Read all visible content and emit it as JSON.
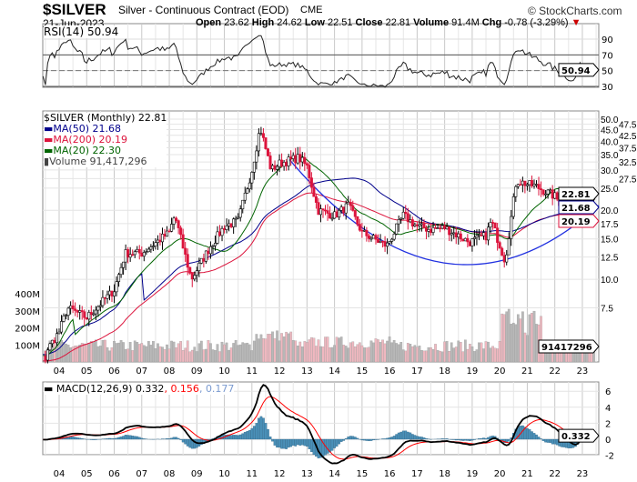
{
  "header": {
    "symbol": "$SILVER",
    "name": "Silver - Continuous Contract (EOD)",
    "exchange": "CME",
    "date": "21-Jun-2023",
    "brand": "© StockCharts.com",
    "open_label": "Open",
    "open": "23.62",
    "high_label": "High",
    "high": "24.62",
    "low_label": "Low",
    "low": "22.51",
    "close_label": "Close",
    "close": "22.81",
    "volume_label": "Volume",
    "volume": "91.4M",
    "chg_label": "Chg",
    "chg": "-0.78 (-3.29%)"
  },
  "colors": {
    "ma50": "#00008b",
    "ma200": "#dc143c",
    "ma20": "#006400",
    "up": "#000000",
    "down": "#dc143c",
    "volume": "#b0b0b0",
    "histogram": "#4a90b8",
    "signal": "#ff0000"
  },
  "chart_data": [
    {
      "type": "line",
      "panel": "rsi",
      "title": "RSI(14) 50.94",
      "ylim": [
        20,
        100
      ],
      "ticks": [
        "90",
        "70",
        "50",
        "30"
      ],
      "last": "50.94",
      "overbought": 70,
      "oversold": 30
    },
    {
      "type": "candlestick",
      "panel": "price",
      "title": "$SILVER (Monthly) 22.81",
      "scale": "log",
      "ylim": [
        4.5,
        55
      ],
      "ticks": [
        "50.0",
        "47.5",
        "45.0",
        "42.5",
        "40.0",
        "37.5",
        "35.0",
        "32.5",
        "30.0",
        "27.5",
        "25.0",
        "20.0",
        "17.5",
        "15.0",
        "12.5",
        "10.0",
        "7.5"
      ],
      "legend": [
        "MA(50) 21.68",
        "MA(200) 20.19",
        "MA(20) 22.30",
        "Volume 91,417,296"
      ],
      "last_labels": [
        "22.81",
        "21.68",
        "20.19"
      ],
      "approx_close_anchors": [
        [
          2003.5,
          4.8
        ],
        [
          2004,
          5.9
        ],
        [
          2004.3,
          7.5
        ],
        [
          2005,
          6.8
        ],
        [
          2006,
          9
        ],
        [
          2006.4,
          13
        ],
        [
          2007,
          13
        ],
        [
          2008,
          16
        ],
        [
          2008.2,
          19
        ],
        [
          2008.8,
          10
        ],
        [
          2009,
          11
        ],
        [
          2009.5,
          14
        ],
        [
          2010,
          17
        ],
        [
          2010.5,
          18
        ],
        [
          2011,
          30
        ],
        [
          2011.3,
          46
        ],
        [
          2011.7,
          30
        ],
        [
          2012,
          32
        ],
        [
          2012.7,
          34
        ],
        [
          2013,
          31
        ],
        [
          2013.4,
          20
        ],
        [
          2014,
          19
        ],
        [
          2014.5,
          21
        ],
        [
          2015,
          16
        ],
        [
          2015.9,
          14
        ],
        [
          2016.5,
          19
        ],
        [
          2017,
          17
        ],
        [
          2017.5,
          16.5
        ],
        [
          2018,
          16.8
        ],
        [
          2018.9,
          14.5
        ],
        [
          2019.5,
          15.5
        ],
        [
          2019.7,
          18
        ],
        [
          2020.2,
          12
        ],
        [
          2020.6,
          27
        ],
        [
          2021,
          26
        ],
        [
          2021.3,
          25.5
        ],
        [
          2022,
          23
        ],
        [
          2022.7,
          18
        ],
        [
          2022.9,
          23
        ],
        [
          2023.2,
          24
        ],
        [
          2023.45,
          22.81
        ]
      ],
      "volume_ticks": [
        "400M",
        "300M",
        "200M",
        "100M"
      ],
      "volume_last": "91417296"
    },
    {
      "type": "line",
      "panel": "macd",
      "title": "MACD(12,26,9)",
      "macd": "0.332",
      "signal": "0.156",
      "hist": "0.177",
      "ticks": [
        "6",
        "4",
        "2",
        "0",
        "-2"
      ],
      "last": "0.332"
    }
  ],
  "xaxis": [
    "04",
    "05",
    "06",
    "07",
    "08",
    "09",
    "10",
    "11",
    "12",
    "13",
    "14",
    "15",
    "16",
    "17",
    "18",
    "19",
    "20",
    "21",
    "22",
    "23"
  ],
  "legend_sep": ", "
}
